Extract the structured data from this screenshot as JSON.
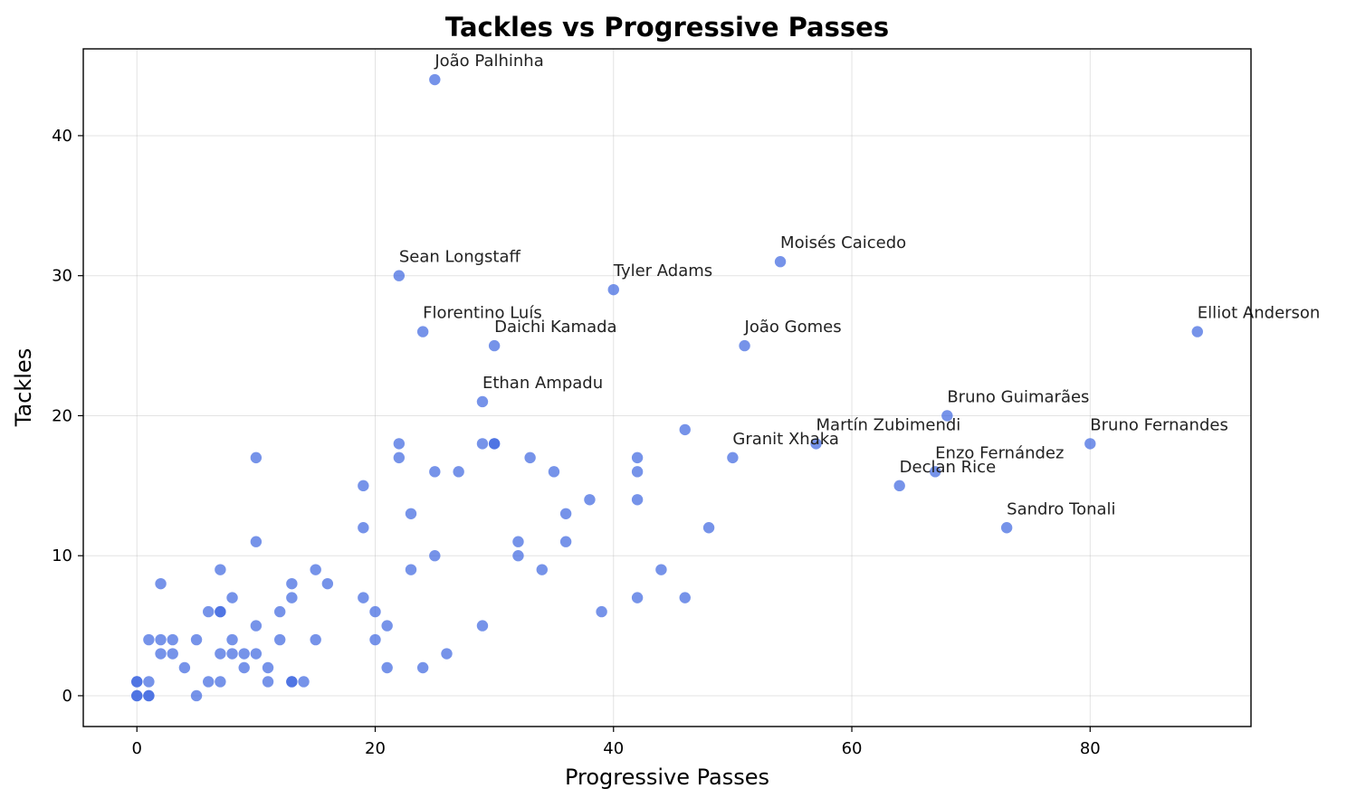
{
  "chart_data": {
    "type": "scatter",
    "title": "Tackles vs Progressive Passes",
    "xlabel": "Progressive Passes",
    "ylabel": "Tackles",
    "xlim": [
      -4.5,
      93.5
    ],
    "ylim": [
      -2.2,
      46.2
    ],
    "xticks": [
      0,
      20,
      40,
      60,
      80
    ],
    "yticks": [
      0,
      10,
      20,
      30,
      40
    ],
    "grid": true,
    "point_color": "#4169e1",
    "points": [
      {
        "x": 25,
        "y": 44
      },
      {
        "x": 22,
        "y": 30
      },
      {
        "x": 40,
        "y": 29
      },
      {
        "x": 54,
        "y": 31
      },
      {
        "x": 24,
        "y": 26
      },
      {
        "x": 30,
        "y": 25
      },
      {
        "x": 51,
        "y": 25
      },
      {
        "x": 89,
        "y": 26
      },
      {
        "x": 29,
        "y": 21
      },
      {
        "x": 68,
        "y": 20
      },
      {
        "x": 57,
        "y": 18
      },
      {
        "x": 80,
        "y": 18
      },
      {
        "x": 50,
        "y": 17
      },
      {
        "x": 67,
        "y": 16
      },
      {
        "x": 64,
        "y": 15
      },
      {
        "x": 73,
        "y": 12
      },
      {
        "x": 46,
        "y": 19
      },
      {
        "x": 48,
        "y": 12
      },
      {
        "x": 42,
        "y": 17
      },
      {
        "x": 42,
        "y": 16
      },
      {
        "x": 42,
        "y": 14
      },
      {
        "x": 42,
        "y": 7
      },
      {
        "x": 46,
        "y": 7
      },
      {
        "x": 44,
        "y": 9
      },
      {
        "x": 39,
        "y": 6
      },
      {
        "x": 38,
        "y": 14
      },
      {
        "x": 36,
        "y": 13
      },
      {
        "x": 36,
        "y": 11
      },
      {
        "x": 35,
        "y": 16
      },
      {
        "x": 33,
        "y": 17
      },
      {
        "x": 34,
        "y": 9
      },
      {
        "x": 32,
        "y": 11
      },
      {
        "x": 32,
        "y": 10
      },
      {
        "x": 30,
        "y": 18
      },
      {
        "x": 30,
        "y": 18
      },
      {
        "x": 29,
        "y": 18
      },
      {
        "x": 29,
        "y": 5
      },
      {
        "x": 27,
        "y": 16
      },
      {
        "x": 26,
        "y": 3
      },
      {
        "x": 25,
        "y": 16
      },
      {
        "x": 25,
        "y": 10
      },
      {
        "x": 24,
        "y": 2
      },
      {
        "x": 23,
        "y": 13
      },
      {
        "x": 23,
        "y": 9
      },
      {
        "x": 22,
        "y": 18
      },
      {
        "x": 22,
        "y": 17
      },
      {
        "x": 21,
        "y": 5
      },
      {
        "x": 21,
        "y": 2
      },
      {
        "x": 20,
        "y": 6
      },
      {
        "x": 20,
        "y": 4
      },
      {
        "x": 19,
        "y": 15
      },
      {
        "x": 19,
        "y": 12
      },
      {
        "x": 19,
        "y": 7
      },
      {
        "x": 16,
        "y": 8
      },
      {
        "x": 15,
        "y": 9
      },
      {
        "x": 15,
        "y": 4
      },
      {
        "x": 14,
        "y": 1
      },
      {
        "x": 13,
        "y": 8
      },
      {
        "x": 13,
        "y": 7
      },
      {
        "x": 13,
        "y": 1
      },
      {
        "x": 13,
        "y": 1
      },
      {
        "x": 12,
        "y": 6
      },
      {
        "x": 12,
        "y": 4
      },
      {
        "x": 11,
        "y": 2
      },
      {
        "x": 11,
        "y": 1
      },
      {
        "x": 10,
        "y": 17
      },
      {
        "x": 10,
        "y": 11
      },
      {
        "x": 10,
        "y": 5
      },
      {
        "x": 10,
        "y": 3
      },
      {
        "x": 9,
        "y": 3
      },
      {
        "x": 9,
        "y": 2
      },
      {
        "x": 8,
        "y": 7
      },
      {
        "x": 8,
        "y": 4
      },
      {
        "x": 8,
        "y": 3
      },
      {
        "x": 7,
        "y": 9
      },
      {
        "x": 7,
        "y": 6
      },
      {
        "x": 7,
        "y": 6
      },
      {
        "x": 7,
        "y": 3
      },
      {
        "x": 7,
        "y": 1
      },
      {
        "x": 6,
        "y": 6
      },
      {
        "x": 6,
        "y": 1
      },
      {
        "x": 5,
        "y": 4
      },
      {
        "x": 5,
        "y": 0
      },
      {
        "x": 4,
        "y": 2
      },
      {
        "x": 3,
        "y": 4
      },
      {
        "x": 3,
        "y": 3
      },
      {
        "x": 2,
        "y": 8
      },
      {
        "x": 2,
        "y": 4
      },
      {
        "x": 2,
        "y": 3
      },
      {
        "x": 1,
        "y": 4
      },
      {
        "x": 1,
        "y": 1
      },
      {
        "x": 1,
        "y": 0
      },
      {
        "x": 1,
        "y": 0
      },
      {
        "x": 0,
        "y": 1
      },
      {
        "x": 0,
        "y": 1
      },
      {
        "x": 0,
        "y": 0
      },
      {
        "x": 0,
        "y": 0
      }
    ],
    "annotations": [
      {
        "label": "João Palhinha",
        "x": 25,
        "y": 44
      },
      {
        "label": "Sean Longstaff",
        "x": 22,
        "y": 30
      },
      {
        "label": "Tyler Adams",
        "x": 40,
        "y": 29
      },
      {
        "label": "Moisés Caicedo",
        "x": 54,
        "y": 31
      },
      {
        "label": "Florentino Luís",
        "x": 24,
        "y": 26
      },
      {
        "label": "Daichi Kamada",
        "x": 30,
        "y": 25
      },
      {
        "label": "João Gomes",
        "x": 51,
        "y": 25
      },
      {
        "label": "Elliot Anderson",
        "x": 89,
        "y": 26
      },
      {
        "label": "Ethan Ampadu",
        "x": 29,
        "y": 21
      },
      {
        "label": "Bruno Guimarães",
        "x": 68,
        "y": 20
      },
      {
        "label": "Granit Xhaka",
        "x": 50,
        "y": 17
      },
      {
        "label": "Martín Zubimendi",
        "x": 57,
        "y": 18
      },
      {
        "label": "Bruno Fernandes",
        "x": 80,
        "y": 18
      },
      {
        "label": "Enzo Fernández",
        "x": 67,
        "y": 16
      },
      {
        "label": "Declan Rice",
        "x": 64,
        "y": 15
      },
      {
        "label": "Sandro Tonali",
        "x": 73,
        "y": 12
      }
    ]
  }
}
